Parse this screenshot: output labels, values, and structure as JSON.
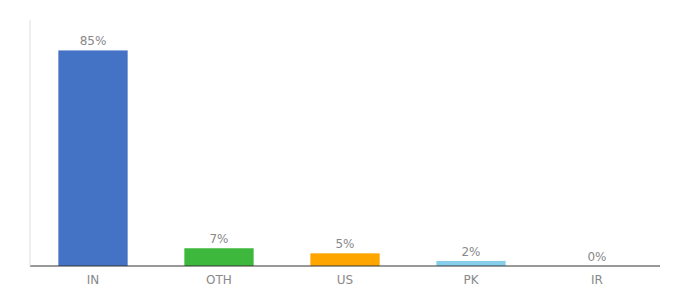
{
  "chart_data": {
    "type": "bar",
    "categories": [
      "IN",
      "OTH",
      "US",
      "PK",
      "IR"
    ],
    "values": [
      85,
      7,
      5,
      2,
      0
    ],
    "value_labels": [
      "85%",
      "7%",
      "5%",
      "2%",
      "0%"
    ],
    "colors": [
      "#4472c4",
      "#3db83d",
      "#ffa500",
      "#87ceeb",
      "#cccccc"
    ],
    "ylim": [
      0,
      97
    ],
    "data_labels": true,
    "tick_labels": "x",
    "grid": false
  }
}
